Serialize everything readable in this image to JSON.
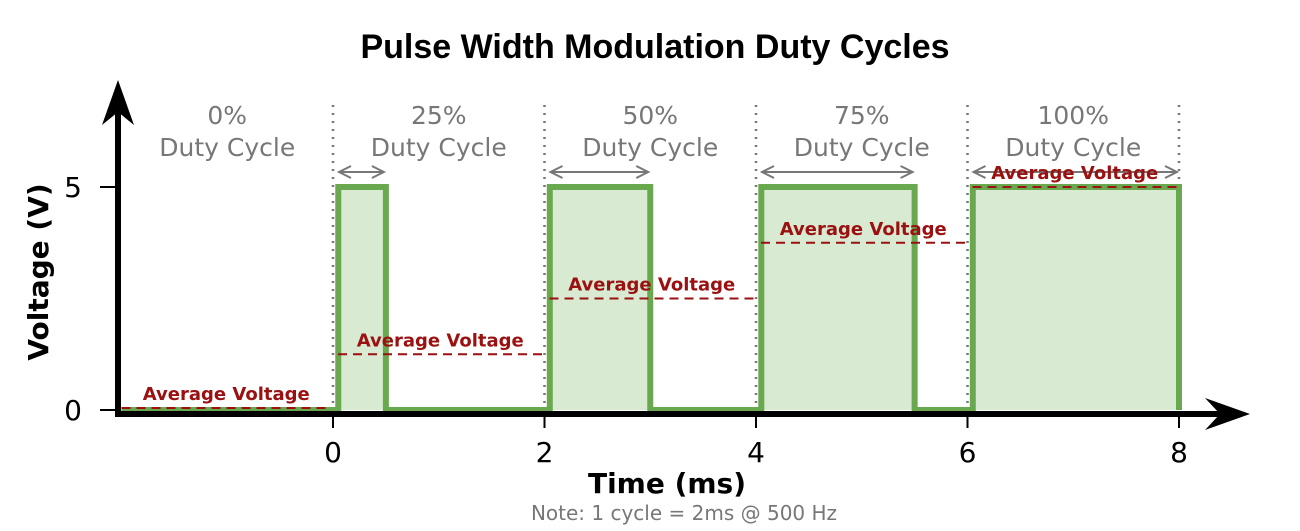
{
  "chart_data": {
    "type": "line",
    "title": "Pulse Width Modulation Duty Cycles",
    "xlabel": "Time (ms)",
    "ylabel": "Voltage (V)",
    "note": "Note: 1 cycle = 2ms @ 500 Hz",
    "xlim": [
      -2,
      8.6
    ],
    "ylim": [
      0,
      5
    ],
    "x_ticks": [
      {
        "value": 0,
        "label": "0"
      },
      {
        "value": 2,
        "label": "2"
      },
      {
        "value": 4,
        "label": "4"
      },
      {
        "value": 6,
        "label": "6"
      },
      {
        "value": 8,
        "label": "8"
      }
    ],
    "y_ticks": [
      {
        "value": 0,
        "label": "0"
      },
      {
        "value": 5,
        "label": "5"
      }
    ],
    "grid": false,
    "high_voltage": 5,
    "cycles": [
      {
        "start": -2,
        "end": 0,
        "percent_label": "0%",
        "label": "Duty Cycle",
        "duty": 0,
        "average_voltage": 0,
        "average_label": "Average Voltage"
      },
      {
        "start": 0,
        "end": 2,
        "percent_label": "25%",
        "label": "Duty Cycle",
        "duty": 0.25,
        "average_voltage": 1.25,
        "average_label": "Average Voltage"
      },
      {
        "start": 2,
        "end": 4,
        "percent_label": "50%",
        "label": "Duty Cycle",
        "duty": 0.5,
        "average_voltage": 2.5,
        "average_label": "Average Voltage"
      },
      {
        "start": 4,
        "end": 6,
        "percent_label": "75%",
        "label": "Duty Cycle",
        "duty": 0.75,
        "average_voltage": 3.75,
        "average_label": "Average Voltage"
      },
      {
        "start": 6,
        "end": 8,
        "percent_label": "100%",
        "label": "Duty Cycle",
        "duty": 1,
        "average_voltage": 5,
        "average_label": "Average Voltage"
      }
    ],
    "colors": {
      "signal": "#6aa84f",
      "signal_fill": "#d9ead3",
      "average": "#9b1010",
      "annotation": "#777777",
      "axis": "#000000"
    }
  }
}
